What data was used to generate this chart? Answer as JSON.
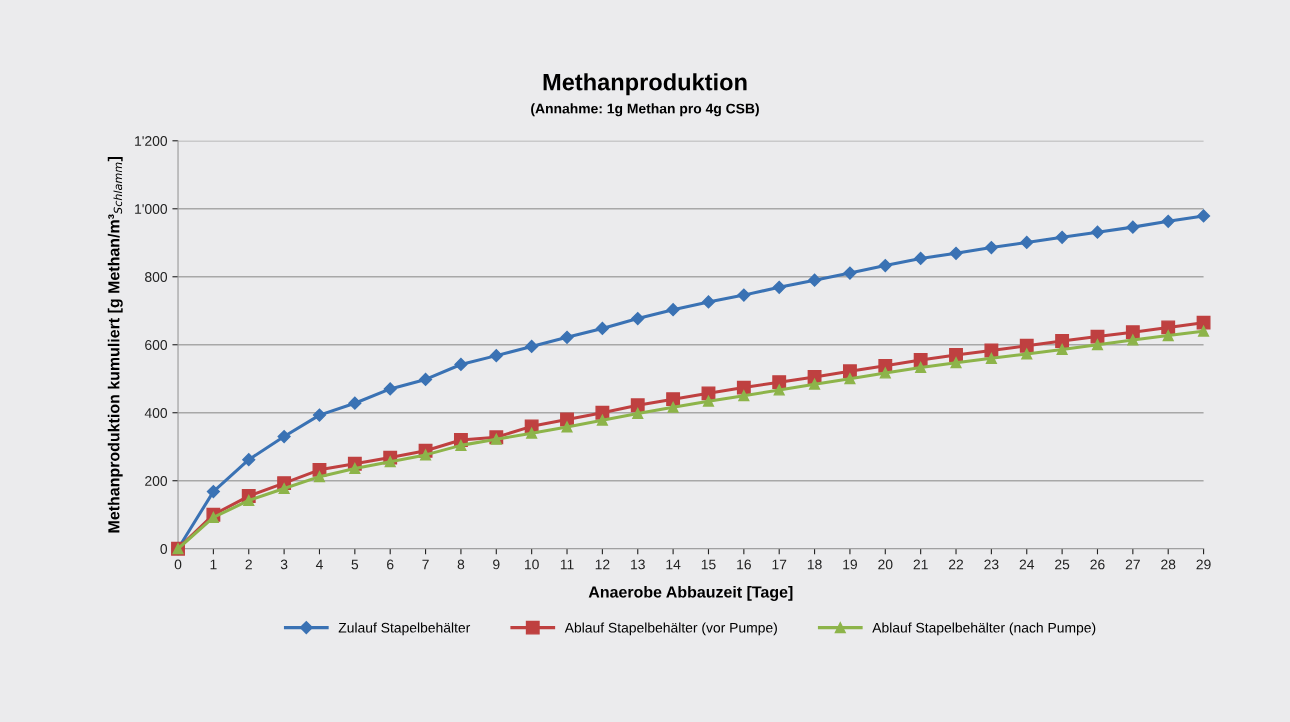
{
  "chart_data": {
    "type": "line",
    "title": "Methanproduktion",
    "subtitle": "(Annahme: 1g Methan pro 4g CSB)",
    "xlabel": "Anaerobe Abbauzeit [Tage]",
    "ylabel": "Methanproduktion kumuliert [g Methan/m³$_{Schlamm}$]",
    "categories": [
      "0",
      "1",
      "2",
      "3",
      "4",
      "5",
      "6",
      "7",
      "8",
      "9",
      "10",
      "11",
      "12",
      "13",
      "14",
      "15",
      "16",
      "17",
      "18",
      "19",
      "20",
      "21",
      "22",
      "23",
      "24",
      "25",
      "26",
      "27",
      "28",
      "29"
    ],
    "series": [
      {
        "name": "Zulauf Stapelbehälter",
        "color": "#3a72b4",
        "marker": "diamond",
        "values": [
          0,
          168,
          262,
          330,
          393,
          428,
          470,
          498,
          542,
          568,
          595,
          622,
          648,
          677,
          703,
          726,
          746,
          769,
          790,
          811,
          833,
          854,
          869,
          886,
          901,
          916,
          931,
          946,
          963,
          979
        ]
      },
      {
        "name": "Ablauf Stapelbehälter (vor Pumpe)",
        "color": "#bf4040",
        "marker": "square",
        "values": [
          0,
          100,
          155,
          193,
          232,
          250,
          268,
          288,
          320,
          328,
          360,
          380,
          400,
          422,
          440,
          457,
          474,
          490,
          505,
          522,
          538,
          555,
          570,
          583,
          597,
          611,
          624,
          637,
          651,
          665
        ]
      },
      {
        "name": "Ablauf Stapelbehälter (nach Pumpe)",
        "color": "#8db44a",
        "marker": "triangle",
        "values": [
          0,
          92,
          142,
          177,
          212,
          236,
          256,
          276,
          304,
          322,
          340,
          358,
          378,
          398,
          416,
          434,
          450,
          467,
          484,
          500,
          517,
          533,
          547,
          560,
          573,
          586,
          600,
          614,
          627,
          640
        ]
      }
    ],
    "ylim": [
      0,
      1200
    ],
    "yticks": [
      0,
      200,
      400,
      600,
      800,
      {
        "value": 1000,
        "label": "1'000"
      },
      {
        "value": 1200,
        "label": "1'200"
      }
    ],
    "grid": "y",
    "legend": "bottom"
  }
}
